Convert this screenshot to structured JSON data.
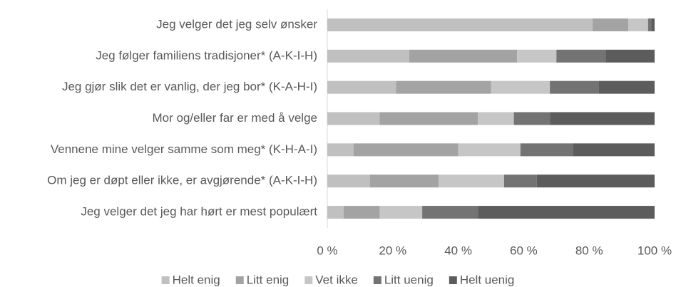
{
  "chart_data": {
    "type": "stacked_bar_horizontal",
    "categories": [
      "Jeg velger det jeg selv ønsker",
      "Jeg følger familiens tradisjoner* (A-K-I-H)",
      "Jeg gjør slik det er vanlig, der jeg bor* (K-A-H-I)",
      "Mor og/eller far er med å velge",
      "Vennene mine velger samme som meg* (K-H-A-I)",
      "Om jeg er døpt eller ikke, er avgjørende* (A-K-I-H)",
      "Jeg velger det jeg har hørt er mest populært"
    ],
    "series": [
      {
        "name": "Helt enig",
        "color": "#c0c0c0",
        "values": [
          81,
          25,
          21,
          16,
          8,
          13,
          5
        ]
      },
      {
        "name": "Litt enig",
        "color": "#a3a3a3",
        "values": [
          11,
          33,
          29,
          30,
          32,
          21,
          11
        ]
      },
      {
        "name": "Vet ikke",
        "color": "#c6c6c6",
        "values": [
          6,
          12,
          18,
          11,
          19,
          20,
          13
        ]
      },
      {
        "name": "Litt uenig",
        "color": "#737373",
        "values": [
          1,
          15,
          15,
          11,
          16,
          10,
          17
        ]
      },
      {
        "name": "Helt uenig",
        "color": "#5c5c5c",
        "values": [
          1,
          15,
          17,
          32,
          25,
          36,
          54
        ]
      }
    ],
    "xlim": [
      0,
      100
    ],
    "xticks": [
      {
        "value": 0,
        "label": "0 %"
      },
      {
        "value": 20,
        "label": "20 %"
      },
      {
        "value": 40,
        "label": "40 %"
      },
      {
        "value": 60,
        "label": "60 %"
      },
      {
        "value": 80,
        "label": "80 %"
      },
      {
        "value": 100,
        "label": "100 %"
      }
    ],
    "legend": "bottom"
  }
}
